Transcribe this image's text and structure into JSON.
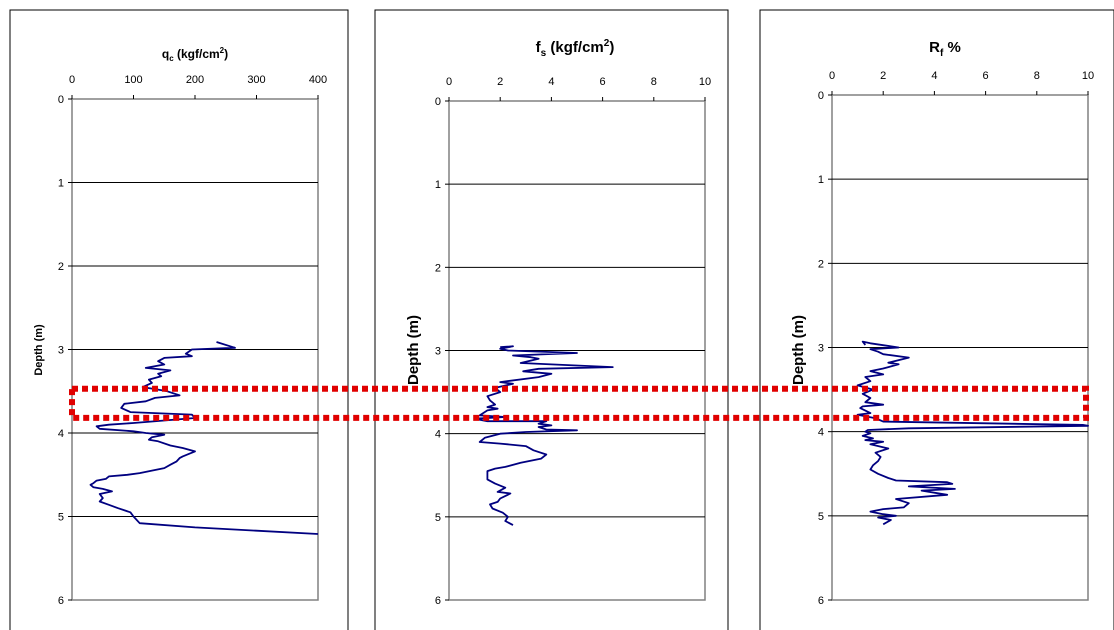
{
  "colors": {
    "series": "#000080",
    "highlight": "#e00000",
    "grid": "#000000",
    "plot_border": "#808080",
    "panel_border": "#000000"
  },
  "highlight_band": {
    "depth_range": [
      3.47,
      3.82
    ]
  },
  "chart_data": [
    {
      "type": "line",
      "title": "qc (kgf/cm2)",
      "title_parts": {
        "main": "q",
        "sub": "c",
        "unit_pre": " (kgf/cm",
        "sup": "2",
        "unit_post": ")"
      },
      "ylabel": "Depth (m)",
      "xlim": [
        0,
        400
      ],
      "ylim": [
        0,
        6
      ],
      "xticks": [
        "0",
        "100",
        "200",
        "300",
        "400"
      ],
      "yticks": [
        "0",
        "1",
        "2",
        "3",
        "4",
        "5",
        "6"
      ],
      "grid": "horizontal",
      "x_axis_position": "top",
      "series": [
        {
          "x": [
            235,
            265,
            195,
            185,
            195,
            150,
            140,
            150,
            120,
            160,
            140,
            145,
            125,
            130,
            115,
            140,
            155,
            175,
            135,
            120,
            85,
            80,
            95,
            195,
            200,
            150,
            100,
            60,
            40,
            45,
            100,
            120,
            150,
            130,
            125,
            140,
            160,
            180,
            200,
            190,
            180,
            175,
            170,
            160,
            150,
            130,
            110,
            90,
            60,
            55,
            40,
            35,
            30,
            35,
            50,
            65,
            45,
            50,
            45,
            60,
            75,
            95,
            100,
            110,
            200,
            300,
            400
          ],
          "y": [
            2.91,
            2.98,
            3.0,
            3.05,
            3.08,
            3.1,
            3.14,
            3.18,
            3.22,
            3.25,
            3.29,
            3.32,
            3.36,
            3.4,
            3.45,
            3.48,
            3.5,
            3.55,
            3.58,
            3.62,
            3.65,
            3.7,
            3.75,
            3.78,
            3.82,
            3.85,
            3.88,
            3.9,
            3.92,
            3.95,
            3.98,
            4.0,
            4.02,
            4.05,
            4.08,
            4.1,
            4.15,
            4.18,
            4.22,
            4.25,
            4.28,
            4.3,
            4.34,
            4.38,
            4.42,
            4.45,
            4.48,
            4.5,
            4.52,
            4.55,
            4.57,
            4.6,
            4.62,
            4.65,
            4.67,
            4.7,
            4.73,
            4.78,
            4.82,
            4.86,
            4.9,
            4.95,
            5.0,
            5.08,
            5.13,
            5.17,
            5.21
          ]
        }
      ]
    },
    {
      "type": "line",
      "title": "fs (kgf/cm2)",
      "title_parts": {
        "main": "f",
        "sub": "s",
        "unit_pre": " (kgf/cm",
        "sup": "2",
        "unit_post": ")"
      },
      "ylabel": "Depth (m)",
      "xlim": [
        0,
        10
      ],
      "ylim": [
        0,
        6
      ],
      "xticks": [
        "0",
        "2",
        "4",
        "6",
        "8",
        "10"
      ],
      "yticks": [
        "0",
        "1",
        "2",
        "3",
        "4",
        "5",
        "6"
      ],
      "grid": "horizontal",
      "x_axis_position": "top",
      "series": [
        {
          "x": [
            2.0,
            2.5,
            2.0,
            2.3,
            5.0,
            2.5,
            3.2,
            3.5,
            2.8,
            6.4,
            3.5,
            2.9,
            4.0,
            3.5,
            2.0,
            2.5,
            1.8,
            2.0,
            1.5,
            1.6,
            1.8,
            1.5,
            1.9,
            1.5,
            1.2,
            2.2,
            1.0,
            1.5,
            3.8,
            3.5,
            4.0,
            3.5,
            3.8,
            5.0,
            3.0,
            2.0,
            1.4,
            1.2,
            2.0,
            3.0,
            3.3,
            3.8,
            3.6,
            2.8,
            2.2,
            1.8,
            1.5,
            1.5,
            1.8,
            2.2,
            1.9,
            2.4,
            2.0,
            1.9,
            1.6,
            1.7,
            2.1,
            2.3,
            2.2,
            2.5
          ],
          "y": [
            2.96,
            2.95,
            2.98,
            3.0,
            3.03,
            3.06,
            3.08,
            3.1,
            3.15,
            3.2,
            3.22,
            3.25,
            3.28,
            3.32,
            3.38,
            3.4,
            3.45,
            3.5,
            3.55,
            3.6,
            3.65,
            3.68,
            3.7,
            3.72,
            3.78,
            3.8,
            3.82,
            3.85,
            3.85,
            3.88,
            3.9,
            3.92,
            3.95,
            3.96,
            3.98,
            4.0,
            4.05,
            4.1,
            4.12,
            4.15,
            4.2,
            4.25,
            4.3,
            4.35,
            4.4,
            4.42,
            4.45,
            4.55,
            4.6,
            4.65,
            4.7,
            4.72,
            4.78,
            4.82,
            4.85,
            4.9,
            4.95,
            5.0,
            5.05,
            5.1
          ]
        }
      ]
    },
    {
      "type": "line",
      "title": "Rf %",
      "title_parts": {
        "main": "R",
        "sub": "f",
        "unit_pre": " %",
        "sup": "",
        "unit_post": ""
      },
      "ylabel": "Depth (m)",
      "xlim": [
        0,
        10
      ],
      "ylim": [
        0,
        6
      ],
      "xticks": [
        "0",
        "2",
        "4",
        "6",
        "8",
        "10"
      ],
      "yticks": [
        "0",
        "1",
        "2",
        "3",
        "4",
        "5",
        "6"
      ],
      "grid": "horizontal",
      "x_axis_position": "top",
      "series": [
        {
          "x": [
            1.3,
            1.2,
            1.5,
            2.6,
            1.5,
            1.8,
            2.0,
            3.0,
            2.2,
            2.6,
            2.0,
            1.5,
            2.0,
            1.3,
            1.5,
            1.0,
            1.6,
            1.2,
            1.5,
            1.3,
            2.0,
            1.2,
            1.1,
            1.5,
            1.0,
            1.7,
            2.0,
            9.8,
            10.0,
            3.0,
            1.4,
            1.3,
            1.5,
            1.2,
            1.6,
            1.3,
            2.0,
            1.5,
            2.2,
            1.7,
            1.9,
            1.8,
            1.6,
            1.5,
            1.8,
            2.2,
            2.5,
            4.5,
            4.7,
            3.0,
            4.8,
            3.5,
            4.5,
            2.5,
            3.0,
            2.8,
            2.0,
            1.5,
            2.0,
            2.5,
            1.8,
            2.3,
            2.0
          ],
          "y": [
            2.97,
            2.93,
            2.95,
            3.0,
            3.02,
            3.05,
            3.08,
            3.12,
            3.18,
            3.2,
            3.25,
            3.28,
            3.32,
            3.35,
            3.4,
            3.45,
            3.5,
            3.55,
            3.6,
            3.65,
            3.68,
            3.7,
            3.72,
            3.78,
            3.8,
            3.84,
            3.88,
            3.92,
            3.93,
            3.96,
            3.98,
            4.0,
            4.02,
            4.05,
            4.08,
            4.1,
            4.12,
            4.15,
            4.2,
            4.25,
            4.3,
            4.35,
            4.4,
            4.45,
            4.5,
            4.55,
            4.58,
            4.6,
            4.62,
            4.65,
            4.68,
            4.7,
            4.75,
            4.8,
            4.85,
            4.9,
            4.92,
            4.95,
            4.98,
            5.0,
            5.02,
            5.05,
            5.1
          ]
        }
      ]
    }
  ]
}
